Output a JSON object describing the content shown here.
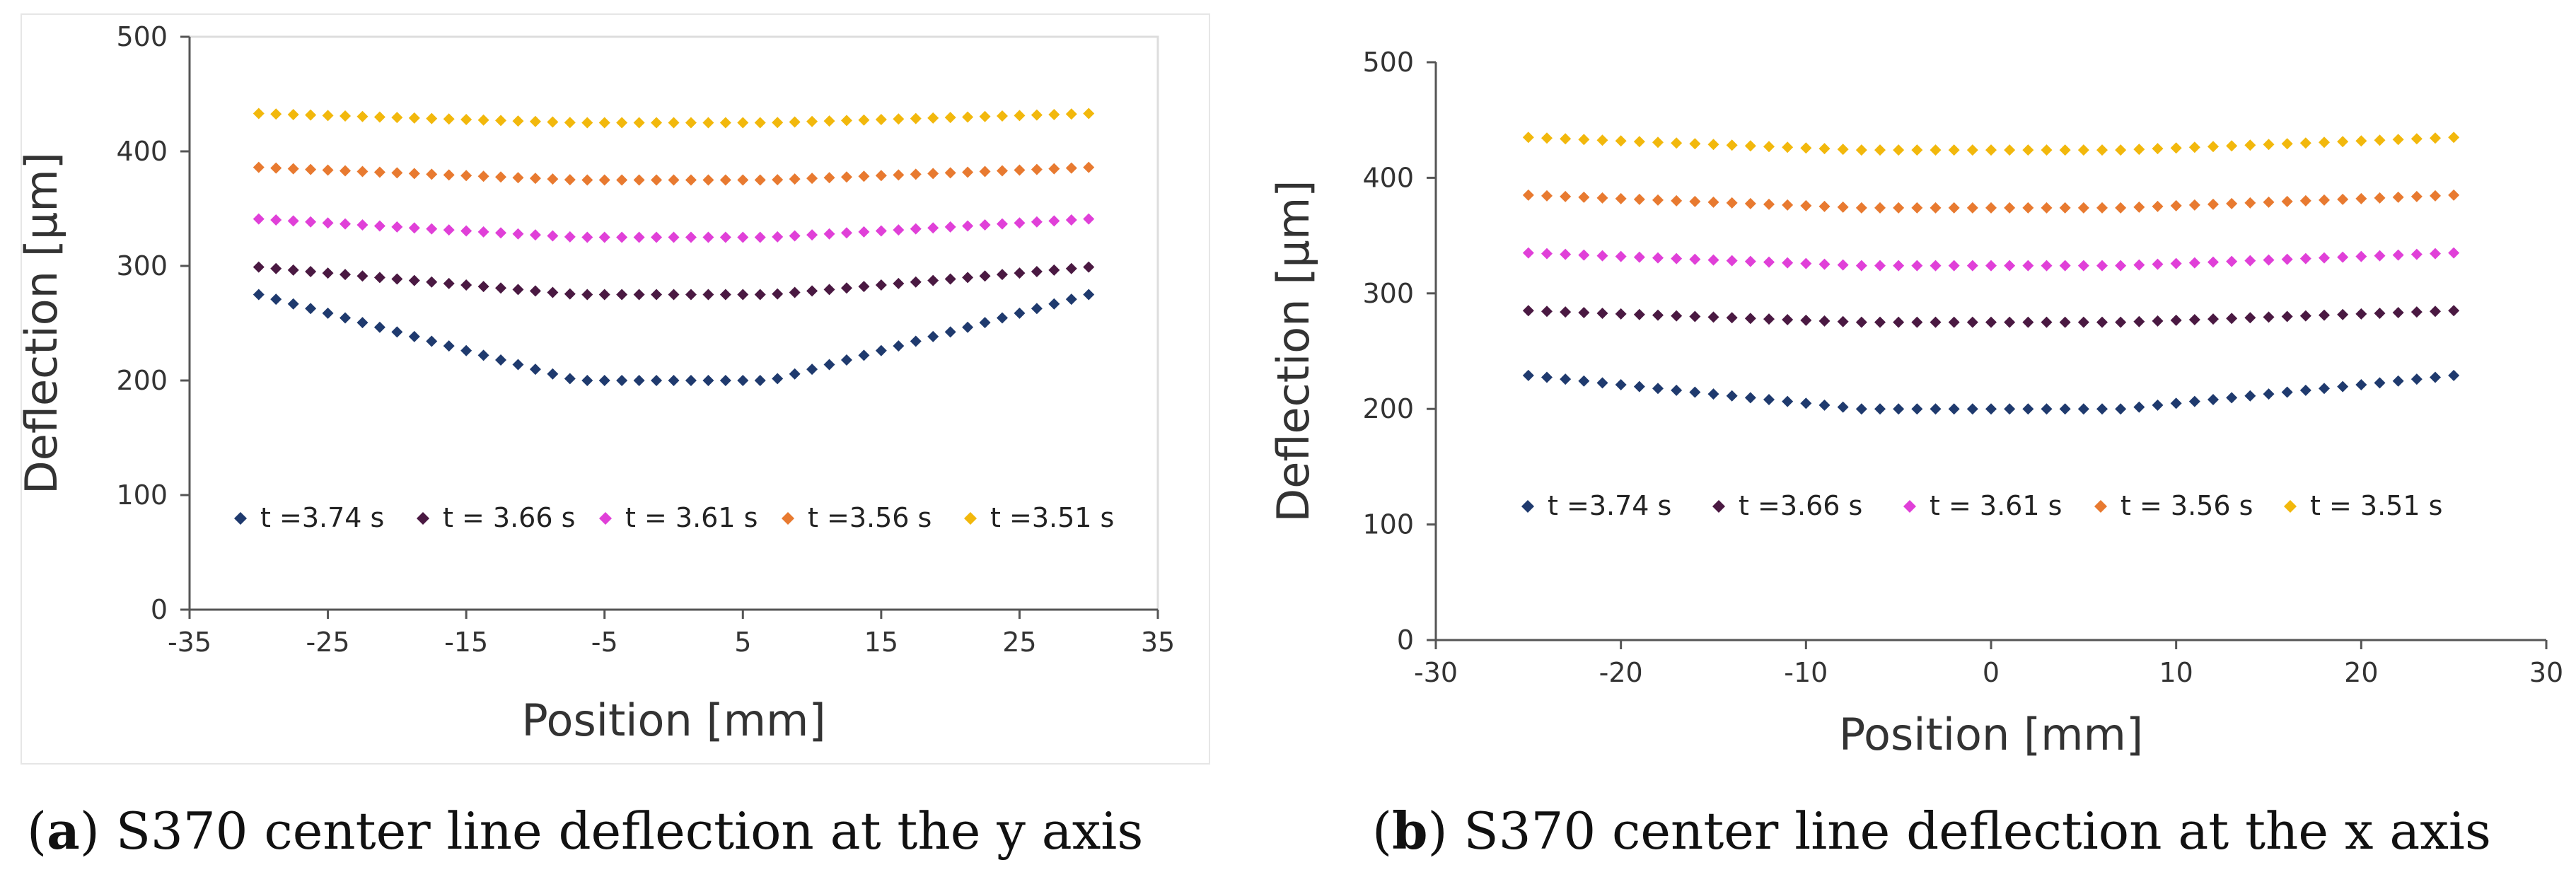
{
  "chart_data": [
    {
      "type": "scatter",
      "panel": "a",
      "xlabel": "Position [mm]",
      "ylabel": "Deflection [µm]",
      "xlim": [
        -35,
        35
      ],
      "ylim": [
        0,
        500
      ],
      "xticks": [
        "-35",
        "-25",
        "-15",
        "-5",
        "5",
        "15",
        "25",
        "35"
      ],
      "yticks": [
        "0",
        "100",
        "200",
        "300",
        "400",
        "500"
      ],
      "legend_position": "bottom-inside",
      "series": [
        {
          "name": "t =3.74 s",
          "color": "#1f3a6e",
          "profile": {
            "x_edge": 30,
            "x_flat": 7,
            "y_edge": 275,
            "y_min": 200
          }
        },
        {
          "name": "t = 3.66 s",
          "color": "#4a1942",
          "profile": {
            "x_edge": 30,
            "x_flat": 7,
            "y_edge": 299,
            "y_min": 275
          }
        },
        {
          "name": "t = 3.61 s",
          "color": "#e040d8",
          "profile": {
            "x_edge": 30,
            "x_flat": 7,
            "y_edge": 341,
            "y_min": 325
          }
        },
        {
          "name": "t =3.56 s",
          "color": "#e87a30",
          "profile": {
            "x_edge": 30,
            "x_flat": 7,
            "y_edge": 386,
            "y_min": 375
          }
        },
        {
          "name": "t =3.51 s",
          "color": "#f2b80c",
          "profile": {
            "x_edge": 30,
            "x_flat": 7,
            "y_edge": 433,
            "y_min": 425
          }
        }
      ]
    },
    {
      "type": "scatter",
      "panel": "b",
      "xlabel": "Position [mm]",
      "ylabel": "Deflection [µm]",
      "xlim": [
        -30,
        30
      ],
      "ylim": [
        0,
        500
      ],
      "xticks": [
        "-30",
        "-20",
        "-10",
        "0",
        "10",
        "20",
        "30"
      ],
      "yticks": [
        "0",
        "100",
        "200",
        "300",
        "400",
        "500"
      ],
      "legend_position": "bottom-inside",
      "series": [
        {
          "name": "t =3.74 s",
          "color": "#1f3a6e",
          "profile": {
            "x_edge": 25,
            "x_flat": 7,
            "y_edge": 229,
            "y_min": 200
          }
        },
        {
          "name": "t =3.66 s",
          "color": "#4a1942",
          "profile": {
            "x_edge": 25,
            "x_flat": 7,
            "y_edge": 285,
            "y_min": 275
          }
        },
        {
          "name": "t = 3.61 s",
          "color": "#e040d8",
          "profile": {
            "x_edge": 25,
            "x_flat": 7,
            "y_edge": 335,
            "y_min": 324
          }
        },
        {
          "name": "t = 3.56 s",
          "color": "#e87a30",
          "profile": {
            "x_edge": 25,
            "x_flat": 7,
            "y_edge": 385,
            "y_min": 374
          }
        },
        {
          "name": "t = 3.51 s",
          "color": "#f2b80c",
          "profile": {
            "x_edge": 25,
            "x_flat": 7,
            "y_edge": 435,
            "y_min": 424
          }
        }
      ]
    }
  ],
  "captions": [
    {
      "tag": "(a)",
      "text": "S370 center line deflection at the y axis"
    },
    {
      "tag": "(b)",
      "text": "S370 center line deflection at the x axis"
    }
  ]
}
